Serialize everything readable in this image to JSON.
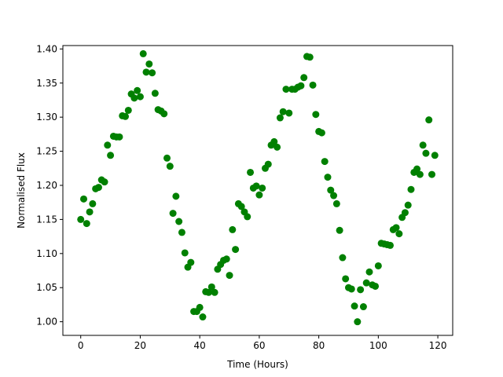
{
  "chart_data": {
    "type": "scatter",
    "title": "",
    "xlabel": "Time (Hours)",
    "ylabel": "Normalised Flux",
    "xlim": [
      -6,
      125
    ],
    "ylim": [
      0.98,
      1.405
    ],
    "xticks": [
      0,
      20,
      40,
      60,
      80,
      100,
      120
    ],
    "yticks": [
      1.0,
      1.05,
      1.1,
      1.15,
      1.2,
      1.25,
      1.3,
      1.35,
      1.4
    ],
    "xtick_labels": [
      "0",
      "20",
      "40",
      "60",
      "80",
      "100",
      "120"
    ],
    "ytick_labels": [
      "1.00",
      "1.05",
      "1.10",
      "1.15",
      "1.20",
      "1.25",
      "1.30",
      "1.35",
      "1.40"
    ],
    "grid": false,
    "marker_color": "#008000",
    "points": [
      [
        0,
        1.15
      ],
      [
        1,
        1.18
      ],
      [
        2,
        1.144
      ],
      [
        3,
        1.161
      ],
      [
        4,
        1.173
      ],
      [
        5,
        1.195
      ],
      [
        6,
        1.197
      ],
      [
        7,
        1.208
      ],
      [
        8,
        1.205
      ],
      [
        9,
        1.259
      ],
      [
        10,
        1.244
      ],
      [
        11,
        1.272
      ],
      [
        12,
        1.271
      ],
      [
        13,
        1.271
      ],
      [
        14,
        1.302
      ],
      [
        15,
        1.301
      ],
      [
        16,
        1.31
      ],
      [
        17,
        1.334
      ],
      [
        18,
        1.328
      ],
      [
        19,
        1.339
      ],
      [
        20,
        1.33
      ],
      [
        21,
        1.393
      ],
      [
        22,
        1.366
      ],
      [
        23,
        1.378
      ],
      [
        24,
        1.365
      ],
      [
        25,
        1.335
      ],
      [
        26,
        1.311
      ],
      [
        27,
        1.309
      ],
      [
        28,
        1.305
      ],
      [
        29,
        1.24
      ],
      [
        30,
        1.228
      ],
      [
        31,
        1.159
      ],
      [
        32,
        1.184
      ],
      [
        33,
        1.147
      ],
      [
        34,
        1.131
      ],
      [
        35,
        1.101
      ],
      [
        36,
        1.08
      ],
      [
        37,
        1.087
      ],
      [
        38,
        1.015
      ],
      [
        39,
        1.015
      ],
      [
        40,
        1.021
      ],
      [
        41,
        1.007
      ],
      [
        42,
        1.044
      ],
      [
        43,
        1.043
      ],
      [
        44,
        1.051
      ],
      [
        45,
        1.043
      ],
      [
        46,
        1.077
      ],
      [
        47,
        1.084
      ],
      [
        48,
        1.09
      ],
      [
        49,
        1.092
      ],
      [
        50,
        1.068
      ],
      [
        51,
        1.135
      ],
      [
        52,
        1.106
      ],
      [
        53,
        1.173
      ],
      [
        54,
        1.169
      ],
      [
        55,
        1.161
      ],
      [
        56,
        1.154
      ],
      [
        57,
        1.219
      ],
      [
        58,
        1.196
      ],
      [
        59,
        1.199
      ],
      [
        60,
        1.186
      ],
      [
        61,
        1.196
      ],
      [
        62,
        1.225
      ],
      [
        63,
        1.231
      ],
      [
        64,
        1.259
      ],
      [
        65,
        1.264
      ],
      [
        66,
        1.256
      ],
      [
        67,
        1.299
      ],
      [
        68,
        1.308
      ],
      [
        69,
        1.341
      ],
      [
        70,
        1.306
      ],
      [
        71,
        1.341
      ],
      [
        72,
        1.341
      ],
      [
        73,
        1.344
      ],
      [
        74,
        1.346
      ],
      [
        75,
        1.358
      ],
      [
        76,
        1.389
      ],
      [
        77,
        1.388
      ],
      [
        78,
        1.347
      ],
      [
        79,
        1.304
      ],
      [
        80,
        1.279
      ],
      [
        81,
        1.277
      ],
      [
        82,
        1.235
      ],
      [
        83,
        1.212
      ],
      [
        84,
        1.193
      ],
      [
        85,
        1.185
      ],
      [
        86,
        1.173
      ],
      [
        87,
        1.134
      ],
      [
        88,
        1.094
      ],
      [
        89,
        1.063
      ],
      [
        90,
        1.05
      ],
      [
        91,
        1.048
      ],
      [
        92,
        1.023
      ],
      [
        93,
        1.0
      ],
      [
        94,
        1.047
      ],
      [
        95,
        1.022
      ],
      [
        96,
        1.057
      ],
      [
        97,
        1.073
      ],
      [
        98,
        1.054
      ],
      [
        99,
        1.052
      ],
      [
        100,
        1.082
      ],
      [
        101,
        1.115
      ],
      [
        102,
        1.114
      ],
      [
        103,
        1.113
      ],
      [
        104,
        1.112
      ],
      [
        105,
        1.135
      ],
      [
        106,
        1.138
      ],
      [
        107,
        1.129
      ],
      [
        108,
        1.153
      ],
      [
        109,
        1.16
      ],
      [
        110,
        1.171
      ],
      [
        111,
        1.194
      ],
      [
        112,
        1.219
      ],
      [
        113,
        1.224
      ],
      [
        114,
        1.216
      ],
      [
        115,
        1.259
      ],
      [
        116,
        1.247
      ],
      [
        117,
        1.296
      ],
      [
        118,
        1.216
      ],
      [
        119,
        1.244
      ]
    ]
  }
}
